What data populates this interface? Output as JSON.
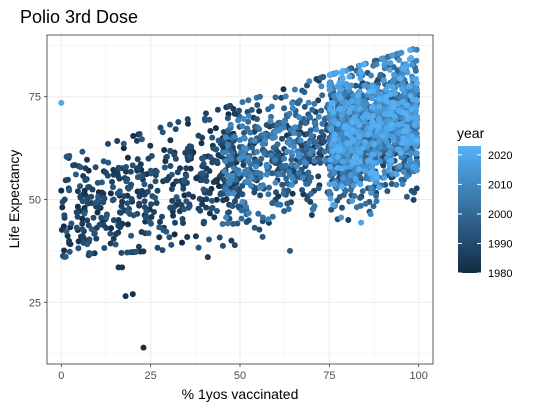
{
  "chart_data": {
    "type": "scatter",
    "title": "Polio 3rd Dose",
    "xlabel": "% 1yos vaccinated",
    "ylabel": "Life Expectancy",
    "xlim": [
      -4,
      104
    ],
    "ylim": [
      10,
      90
    ],
    "x_ticks": [
      0,
      25,
      50,
      75,
      100
    ],
    "y_ticks": [
      25,
      50,
      75
    ],
    "grid": true,
    "legend": {
      "title": "year",
      "placement": "right",
      "range": [
        1980,
        2023
      ],
      "ticks": [
        1980,
        1990,
        2000,
        2010,
        2020
      ],
      "low_color": "#132b43",
      "high_color": "#56b1f7"
    },
    "background_color": "#ffffff",
    "grid_color": "#ebebeb",
    "panel_border_color": "#333333",
    "point_cloud_summary": {
      "n_points_shown": 2600,
      "note_outliers": [
        {
          "x": 0,
          "y": 73.5,
          "year": 2020
        },
        {
          "x": 23,
          "y": 14,
          "year": 1982
        },
        {
          "x": 18,
          "y": 26.5,
          "year": 1983
        },
        {
          "x": 20,
          "y": 27,
          "year": 1982
        },
        {
          "x": 16,
          "y": 33.5,
          "year": 1984
        },
        {
          "x": 17,
          "y": 33.5,
          "year": 1983
        },
        {
          "x": 41,
          "y": 36,
          "year": 1985
        },
        {
          "x": 64,
          "y": 37.5,
          "year": 1995
        }
      ]
    }
  }
}
